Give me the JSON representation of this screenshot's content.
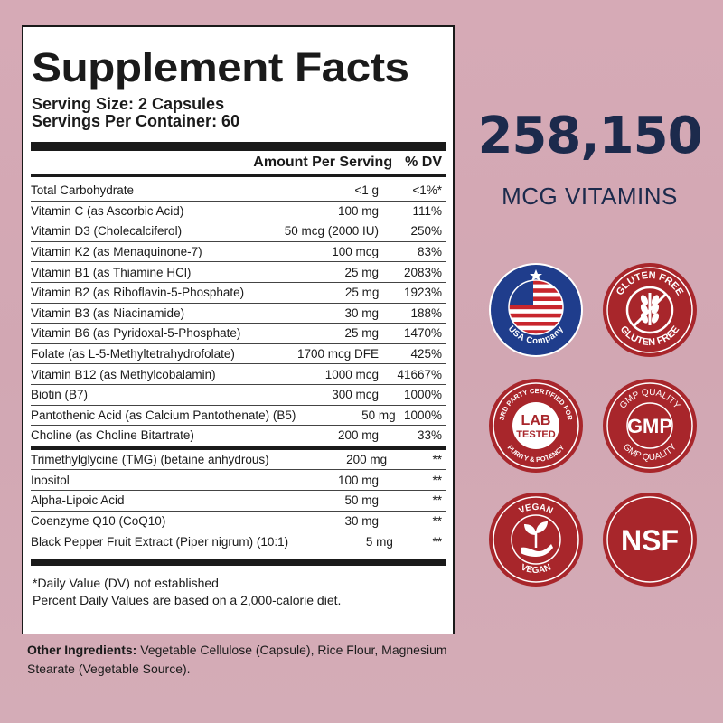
{
  "facts": {
    "title": "Supplement Facts",
    "serving_size": "Serving Size: 2 Capsules",
    "servings_per_container": "Servings Per Container: 60",
    "header_amount": "Amount Per Serving",
    "header_dv": "% DV",
    "rows_a": [
      {
        "name": "Total Carbohydrate",
        "amount": "<1 g",
        "dv": "<1%*"
      },
      {
        "name": "Vitamin C (as Ascorbic Acid)",
        "amount": "100 mg",
        "dv": "111%"
      },
      {
        "name": "Vitamin D3 (Cholecalciferol)",
        "amount": "50 mcg (2000 IU)",
        "dv": "250%"
      },
      {
        "name": "Vitamin K2 (as Menaquinone-7)",
        "amount": "100 mcg",
        "dv": "83%"
      },
      {
        "name": "Vitamin B1 (as Thiamine HCl)",
        "amount": "25 mg",
        "dv": "2083%"
      },
      {
        "name": "Vitamin B2 (as Riboflavin-5-Phosphate)",
        "amount": "25 mg",
        "dv": "1923%"
      },
      {
        "name": "Vitamin B3 (as Niacinamide)",
        "amount": "30 mg",
        "dv": "188%"
      },
      {
        "name": "Vitamin B6 (as Pyridoxal-5-Phosphate)",
        "amount": "25 mg",
        "dv": "1470%"
      },
      {
        "name": "Folate (as L-5-Methyltetrahydrofolate)",
        "amount": "1700 mcg DFE",
        "dv": "425%"
      },
      {
        "name": "Vitamin B12 (as Methylcobalamin)",
        "amount": "1000 mcg",
        "dv": "41667%"
      },
      {
        "name": "Biotin (B7)",
        "amount": "300 mcg",
        "dv": "1000%"
      },
      {
        "name": "Pantothenic Acid (as Calcium Pantothenate) (B5)",
        "amount": "50 mg",
        "dv": "1000%"
      },
      {
        "name": "Choline (as Choline Bitartrate)",
        "amount": "200 mg",
        "dv": "33%"
      }
    ],
    "rows_b": [
      {
        "name": "Trimethylglycine (TMG) (betaine anhydrous)",
        "amount": "200 mg",
        "dv": "**"
      },
      {
        "name": "Inositol",
        "amount": "100 mg",
        "dv": "**"
      },
      {
        "name": "Alpha-Lipoic Acid",
        "amount": "50 mg",
        "dv": "**"
      },
      {
        "name": "Coenzyme Q10 (CoQ10)",
        "amount": "30 mg",
        "dv": "**"
      },
      {
        "name": "Black Pepper Fruit Extract (Piper nigrum) (10:1)",
        "amount": "5 mg",
        "dv": "**"
      }
    ],
    "footnote_1": "*Daily Value (DV) not established",
    "footnote_2": "Percent Daily Values are based on a 2,000-calorie diet."
  },
  "other_ingredients": {
    "label": "Other Ingredients:",
    "text": " Vegetable Cellulose (Capsule), Rice Flour, Magnesium Stearate (Vegetable Source)."
  },
  "highlight": {
    "number": "258,150",
    "subtitle": "MCG VITAMINS"
  },
  "badges": {
    "usa": {
      "text": "USA Company",
      "icon": "usa-flag-icon"
    },
    "gluten": {
      "top": "GLUTEN FREE",
      "bottom": "GLUTEN FREE",
      "icon": "wheat-crossed-icon"
    },
    "lab": {
      "top": "3RD PARTY CERTIFIED FOR",
      "bottom": "PURITY & POTENCY",
      "line1": "LAB",
      "line2": "TESTED"
    },
    "gmp": {
      "top": "GMP QUALITY",
      "bottom": "GMP QUALITY",
      "center": "GMP"
    },
    "vegan": {
      "top": "VEGAN",
      "bottom": "VEGAN",
      "icon": "sprout-hand-icon"
    },
    "nsf": {
      "center": "NSF"
    }
  },
  "colors": {
    "badge_red": "#a8262b",
    "navy": "#1c2a4c",
    "background": "#d4aab5"
  }
}
